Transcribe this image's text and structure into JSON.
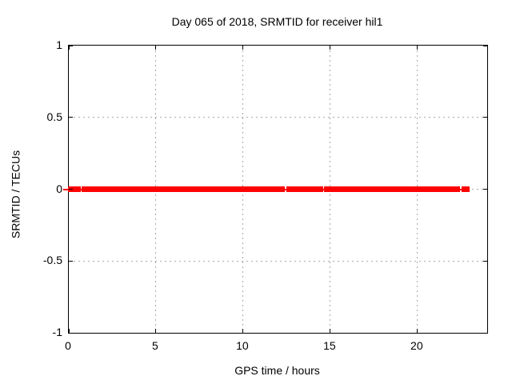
{
  "chart_data": {
    "type": "scatter",
    "title": "Day 065 of 2018, SRMTID for receiver hil1",
    "xlabel": "GPS time / hours",
    "ylabel": "SRMTID / TECUs",
    "xlim": [
      0,
      24
    ],
    "ylim": [
      -1,
      1
    ],
    "grid": true,
    "xticks": [
      {
        "value": 0,
        "label": "0"
      },
      {
        "value": 5,
        "label": "5"
      },
      {
        "value": 10,
        "label": "10"
      },
      {
        "value": 15,
        "label": "15"
      },
      {
        "value": 20,
        "label": "20"
      }
    ],
    "yticks": [
      {
        "value": -1,
        "label": "-1"
      },
      {
        "value": -0.5,
        "label": "-0.5"
      },
      {
        "value": 0,
        "label": "0"
      },
      {
        "value": 0.5,
        "label": "0.5"
      },
      {
        "value": 1,
        "label": "1"
      }
    ],
    "series": [
      {
        "name": "SRMTID",
        "marker": "square",
        "value_tecus": 0,
        "segments_hours": [
          [
            0.0,
            0.62
          ],
          [
            0.8,
            12.34
          ],
          [
            12.53,
            14.22
          ],
          [
            14.32,
            14.55
          ],
          [
            14.68,
            22.4
          ],
          [
            22.58,
            22.95
          ]
        ],
        "gaps_hours": [
          [
            0.62,
            0.8
          ],
          [
            12.34,
            12.53
          ],
          [
            14.22,
            14.32
          ],
          [
            14.55,
            14.68
          ],
          [
            22.4,
            22.58
          ]
        ],
        "connecting_line_hours": [
          0,
          22.95
        ]
      }
    ]
  },
  "colors": {
    "data": "#ff0000",
    "grid": "#a8a8a8",
    "border": "#000000",
    "text": "#000000",
    "background": "#ffffff"
  }
}
